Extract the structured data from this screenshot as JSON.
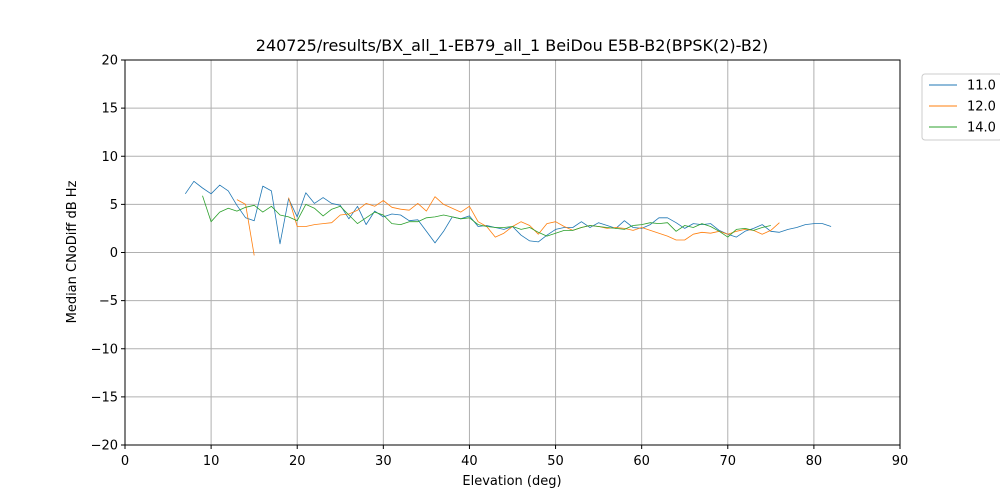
{
  "chart_data": {
    "type": "line",
    "title": "240725/results/BX_all_1-EB79_all_1 BeiDou E5B-B2(BPSK(2)-B2)",
    "xlabel": "Elevation (deg)",
    "ylabel": "Median CNoDiff dB Hz",
    "xlim": [
      0,
      90
    ],
    "ylim": [
      -20,
      20
    ],
    "xticks": [
      0,
      10,
      20,
      30,
      40,
      50,
      60,
      70,
      80,
      90
    ],
    "yticks": [
      -20,
      -15,
      -10,
      -5,
      0,
      5,
      10,
      15,
      20
    ],
    "xtick_labels": [
      "0",
      "10",
      "20",
      "30",
      "40",
      "50",
      "60",
      "70",
      "80",
      "90"
    ],
    "ytick_labels": [
      "−20",
      "−15",
      "−10",
      "−5",
      "0",
      "5",
      "10",
      "15",
      "20"
    ],
    "grid": true,
    "legend_position": "outside-top-right",
    "series": [
      {
        "name": "11.0",
        "color": "#1f77b4",
        "x": [
          7,
          8,
          9,
          10,
          11,
          12,
          13,
          14,
          15,
          16,
          17,
          18,
          19,
          20,
          21,
          22,
          23,
          24,
          25,
          26,
          27,
          28,
          29,
          30,
          31,
          32,
          33,
          34,
          35,
          36,
          37,
          38,
          39,
          40,
          41,
          42,
          43,
          44,
          45,
          46,
          47,
          48,
          49,
          50,
          51,
          52,
          53,
          54,
          55,
          56,
          57,
          58,
          59,
          60,
          61,
          62,
          63,
          64,
          65,
          66,
          67,
          68,
          69,
          70,
          71,
          72,
          73,
          74,
          75,
          76,
          77,
          78,
          79,
          80,
          81,
          82
        ],
        "y": [
          6.1,
          7.4,
          6.7,
          6.1,
          7.0,
          6.4,
          4.9,
          3.6,
          3.3,
          6.9,
          6.4,
          0.9,
          5.6,
          3.7,
          6.2,
          5.1,
          5.7,
          5.1,
          4.9,
          3.5,
          4.8,
          2.9,
          4.3,
          3.7,
          4.0,
          3.9,
          3.3,
          3.4,
          2.2,
          1.0,
          2.2,
          3.7,
          3.5,
          3.8,
          2.7,
          2.8,
          2.6,
          2.4,
          2.7,
          1.8,
          1.2,
          1.1,
          1.8,
          2.4,
          2.6,
          2.6,
          3.2,
          2.6,
          3.1,
          2.8,
          2.5,
          3.3,
          2.6,
          2.5,
          2.9,
          3.6,
          3.6,
          3.1,
          2.5,
          3.0,
          2.9,
          3.0,
          2.3,
          1.9,
          1.6,
          2.2,
          2.5,
          2.9,
          2.2,
          2.1,
          2.4,
          2.6,
          2.9,
          3.0,
          3.0,
          2.7
        ]
      },
      {
        "name": "12.0",
        "color": "#ff7f0e",
        "x": [
          13,
          14,
          15,
          null,
          19,
          20,
          21,
          22,
          23,
          24,
          25,
          26,
          27,
          28,
          29,
          30,
          31,
          32,
          33,
          34,
          35,
          36,
          37,
          38,
          39,
          40,
          41,
          42,
          43,
          44,
          45,
          46,
          47,
          48,
          49,
          50,
          51,
          52,
          53,
          54,
          55,
          56,
          57,
          58,
          59,
          60,
          61,
          62,
          63,
          64,
          65,
          66,
          67,
          68,
          69,
          70,
          71,
          72,
          73,
          74,
          75,
          76
        ],
        "y": [
          5.5,
          5.0,
          -0.3,
          null,
          5.7,
          2.7,
          2.7,
          2.9,
          3.0,
          3.1,
          3.9,
          4.0,
          4.4,
          5.1,
          4.8,
          5.4,
          4.7,
          4.5,
          4.4,
          5.1,
          4.3,
          5.8,
          5.0,
          4.6,
          4.2,
          4.8,
          3.2,
          2.7,
          1.6,
          2.0,
          2.7,
          3.2,
          2.8,
          1.9,
          3.0,
          3.2,
          2.7,
          2.3,
          2.6,
          2.8,
          2.7,
          2.5,
          2.6,
          2.5,
          2.3,
          2.6,
          2.3,
          2.0,
          1.7,
          1.3,
          1.3,
          1.9,
          2.1,
          2.0,
          2.2,
          1.9,
          2.2,
          2.4,
          2.3,
          1.9,
          2.3,
          3.1
        ]
      },
      {
        "name": "14.0",
        "color": "#2ca02c",
        "x": [
          9,
          10,
          11,
          12,
          13,
          14,
          15,
          16,
          17,
          18,
          19,
          20,
          21,
          22,
          23,
          24,
          25,
          26,
          27,
          28,
          29,
          30,
          31,
          32,
          33,
          34,
          35,
          36,
          37,
          38,
          39,
          40,
          41,
          42,
          43,
          44,
          45,
          46,
          47,
          48,
          49,
          50,
          51,
          52,
          53,
          54,
          55,
          56,
          57,
          58,
          59,
          60,
          61,
          62,
          63,
          64,
          65,
          66,
          67,
          68,
          69,
          70,
          71,
          72,
          73,
          74,
          75
        ],
        "y": [
          5.9,
          3.2,
          4.2,
          4.6,
          4.3,
          4.7,
          4.9,
          4.2,
          4.8,
          3.9,
          3.7,
          3.3,
          5.0,
          4.6,
          3.8,
          4.5,
          4.8,
          3.9,
          3.0,
          3.6,
          4.2,
          3.9,
          3.0,
          2.9,
          3.2,
          3.2,
          3.6,
          3.7,
          3.9,
          3.7,
          3.5,
          3.6,
          2.9,
          2.7,
          2.6,
          2.6,
          2.7,
          2.4,
          2.6,
          2.1,
          1.7,
          2.0,
          2.3,
          2.3,
          2.6,
          2.8,
          2.7,
          2.6,
          2.5,
          2.4,
          2.8,
          2.9,
          3.1,
          3.0,
          3.1,
          2.2,
          2.8,
          2.6,
          3.0,
          2.7,
          2.2,
          1.6,
          2.4,
          2.5,
          2.3,
          2.6,
          2.8
        ]
      }
    ]
  }
}
